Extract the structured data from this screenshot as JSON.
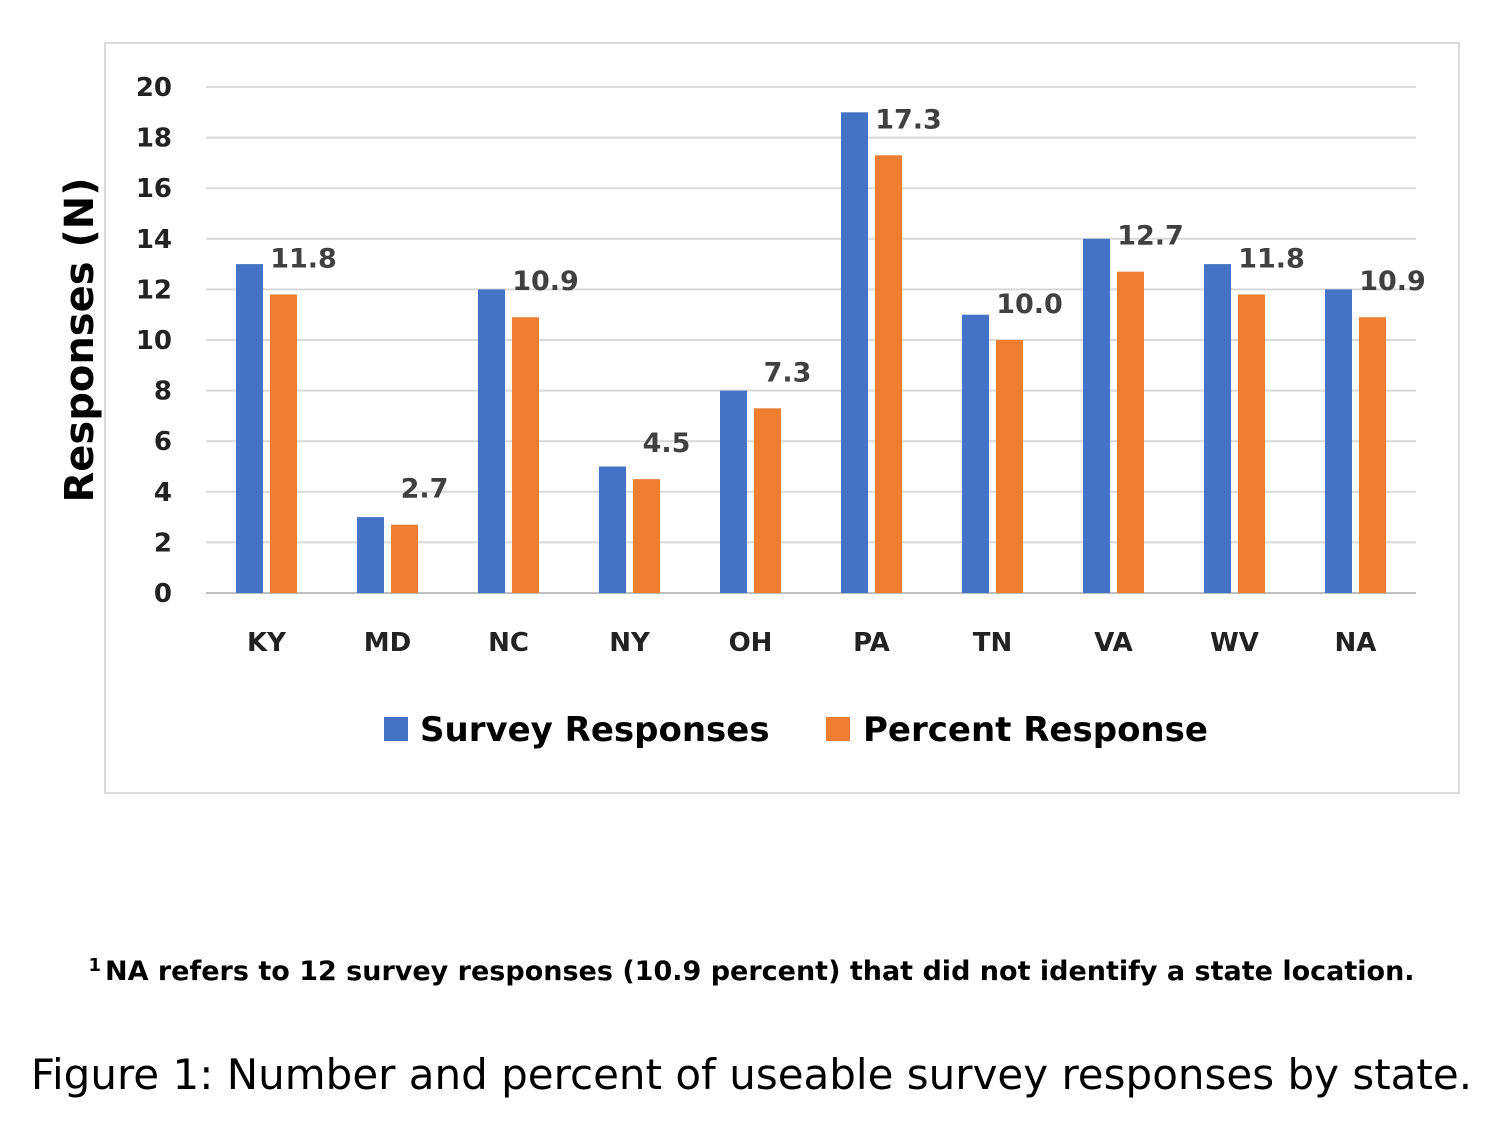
{
  "chart_data": {
    "type": "bar",
    "title": "",
    "xlabel": "",
    "ylabel": "Responses (N)",
    "ylim": [
      0,
      20
    ],
    "yticks": [
      0,
      2,
      4,
      6,
      8,
      10,
      12,
      14,
      16,
      18,
      20
    ],
    "grid": true,
    "legend_position": "bottom",
    "categories": [
      "KY",
      "MD",
      "NC",
      "NY",
      "OH",
      "PA",
      "TN",
      "VA",
      "WV",
      "NA"
    ],
    "series": [
      {
        "name": "Survey Responses",
        "color": "#4472c4",
        "values": [
          13,
          3,
          12,
          5,
          8,
          19,
          11,
          14,
          13,
          12
        ],
        "show_labels": false
      },
      {
        "name": "Percent Response",
        "color": "#ed7d31",
        "values": [
          11.8,
          2.7,
          10.9,
          4.5,
          7.3,
          17.3,
          10.0,
          12.7,
          11.8,
          10.9
        ],
        "labels": [
          "11.8",
          "2.7",
          "10.9",
          "4.5",
          "7.3",
          "17.3",
          "10.0",
          "12.7",
          "11.8",
          "10.9"
        ],
        "show_labels": true
      }
    ]
  },
  "footnote": {
    "marker": "1",
    "text": "NA refers to 12 survey responses (10.9 percent) that did not identify a state location."
  },
  "caption": "Figure 1: Number and percent of useable survey responses by state."
}
